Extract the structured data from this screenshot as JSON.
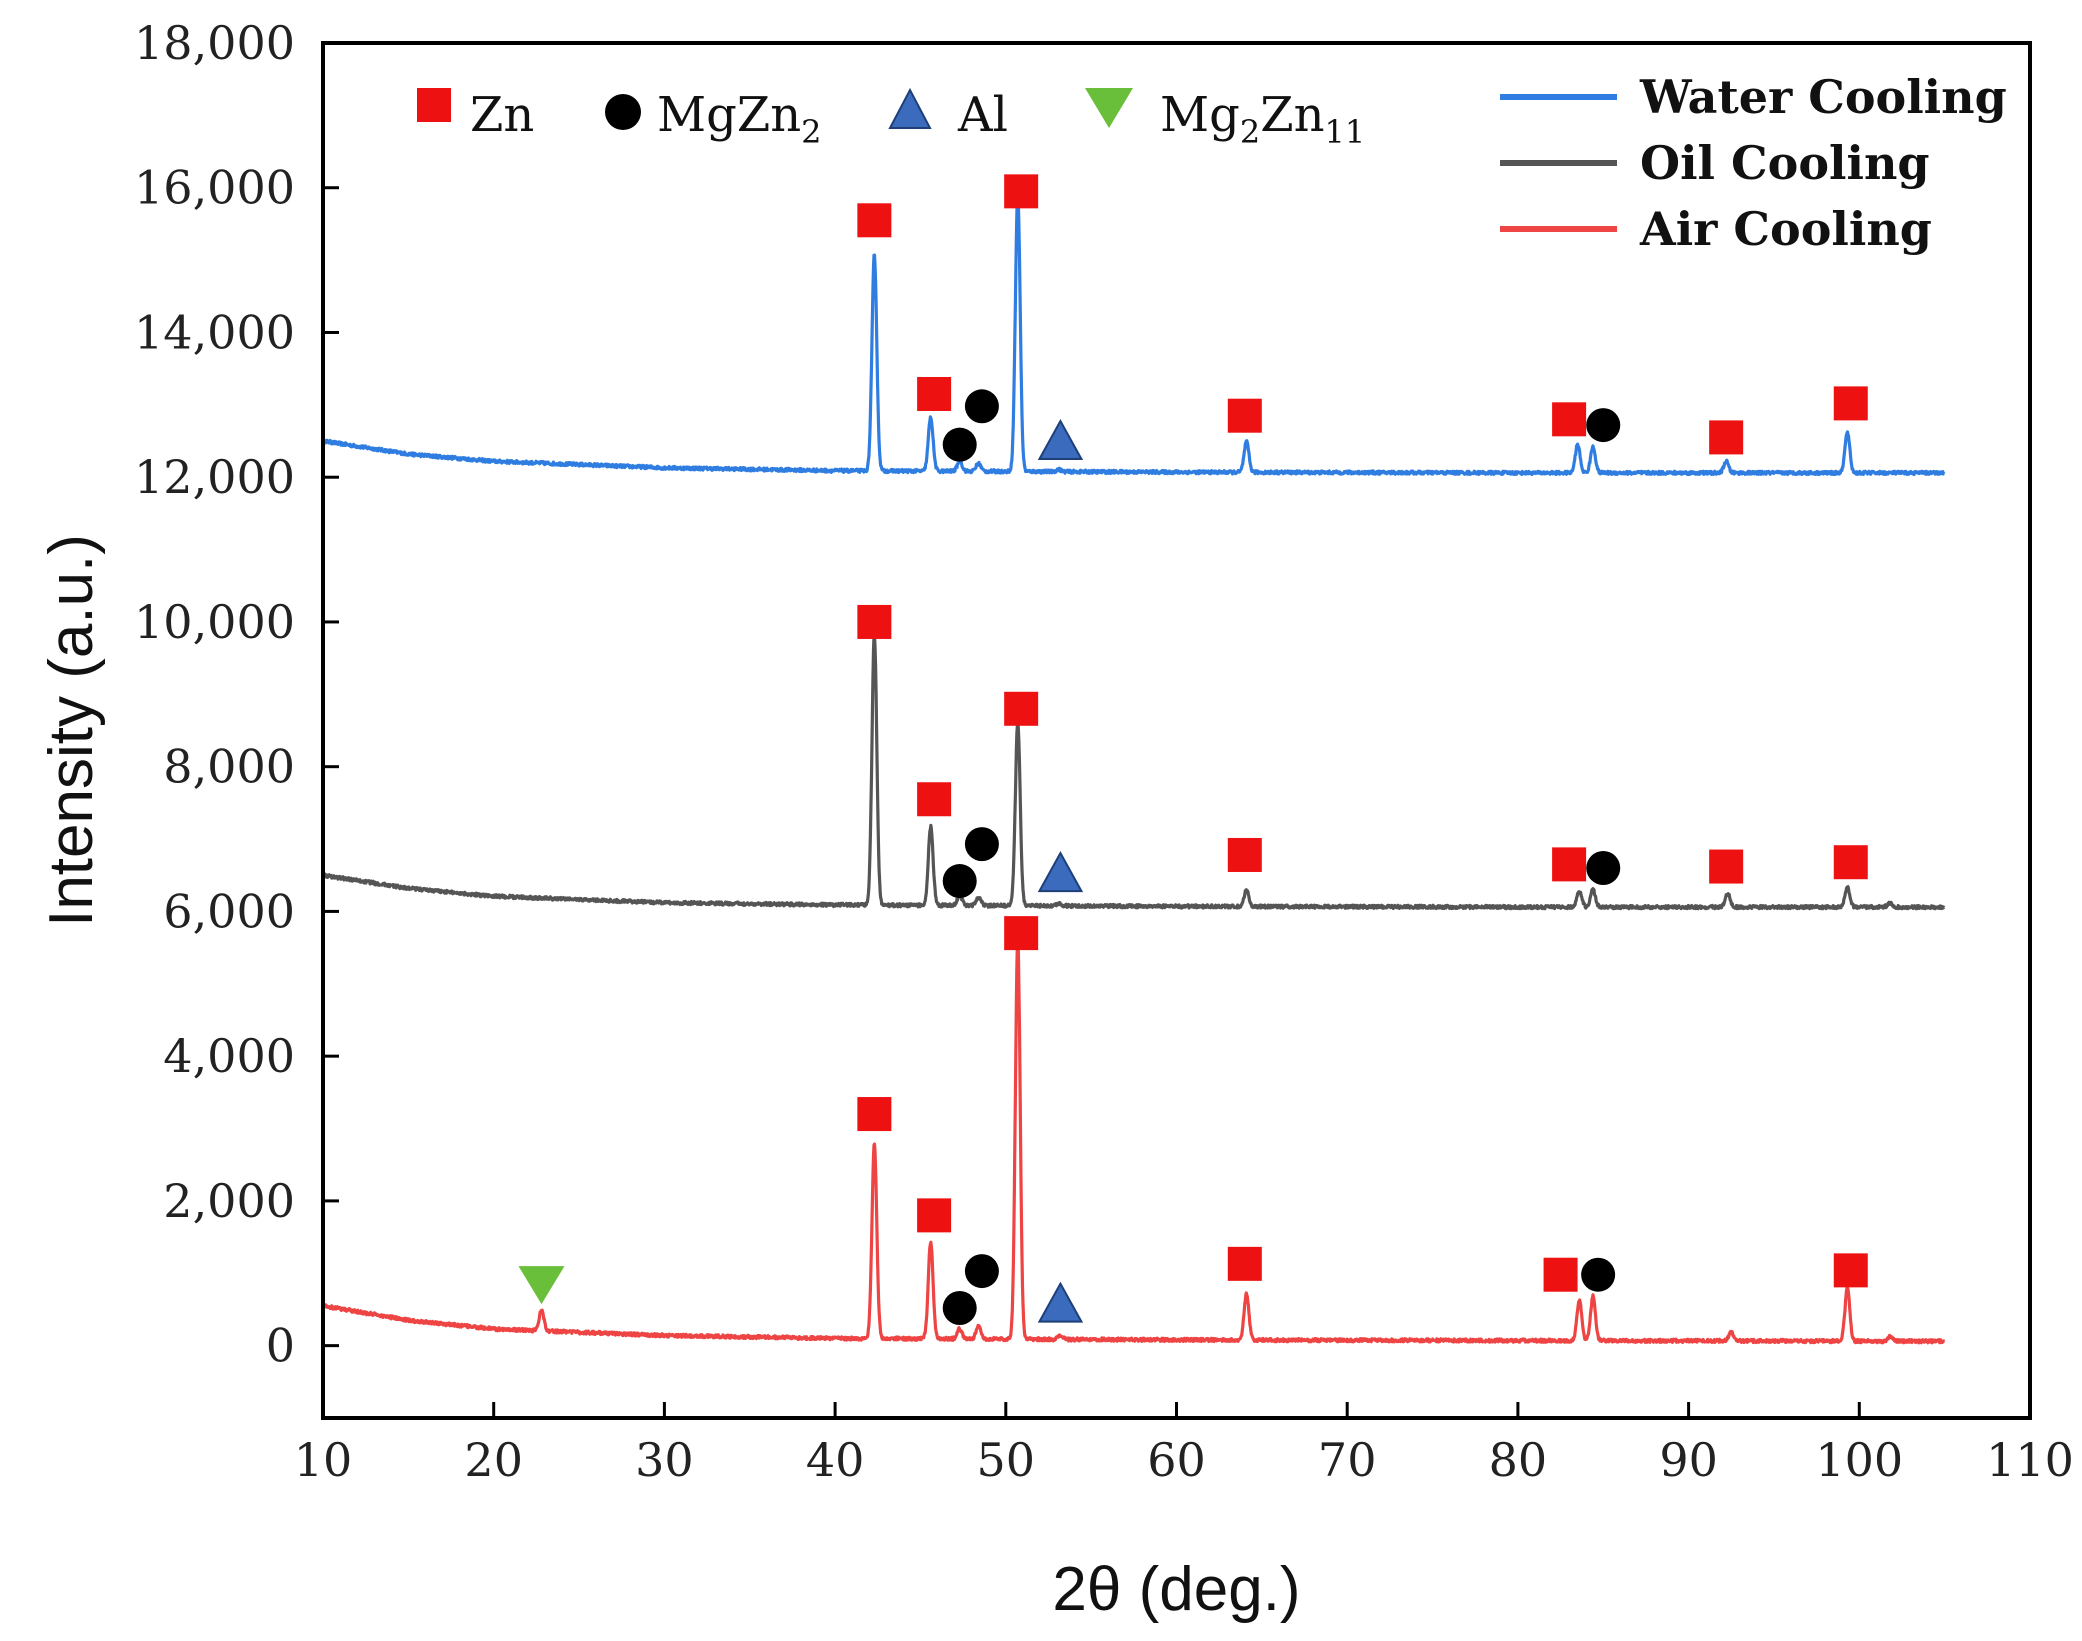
{
  "chart_data": {
    "type": "line",
    "xlabel": "2θ (deg.)",
    "ylabel": "Intensity (a.u.)",
    "xlim": [
      10,
      110
    ],
    "ylim": [
      -1000,
      18000
    ],
    "xticks": [
      10,
      20,
      30,
      40,
      50,
      60,
      70,
      80,
      90,
      100,
      110
    ],
    "xtick_labels": [
      "10",
      "20",
      "30",
      "40",
      "50",
      "60",
      "70",
      "80",
      "90",
      "100",
      "110"
    ],
    "yticks": [
      0,
      2000,
      4000,
      6000,
      8000,
      10000,
      12000,
      14000,
      16000,
      18000
    ],
    "ytick_labels": [
      "0",
      "2,000",
      "4,000",
      "6,000",
      "8,000",
      "10,000",
      "12,000",
      "14,000",
      "16,000",
      "18,000"
    ],
    "series": [
      {
        "name": "Water Cooling",
        "color": "#2f7de1",
        "x_range": [
          10,
          105
        ],
        "baseline": [
          [
            10,
            12500
          ],
          [
            15,
            12320
          ],
          [
            20,
            12220
          ],
          [
            30,
            12130
          ],
          [
            40,
            12090
          ],
          [
            60,
            12070
          ],
          [
            80,
            12060
          ],
          [
            105,
            12060
          ]
        ],
        "peaks": [
          [
            42.3,
            15050
          ],
          [
            45.6,
            12800
          ],
          [
            47.3,
            12200
          ],
          [
            48.4,
            12170
          ],
          [
            50.7,
            15900
          ],
          [
            53.1,
            12090
          ],
          [
            64.1,
            12480
          ],
          [
            83.5,
            12450
          ],
          [
            84.4,
            12420
          ],
          [
            92.2,
            12220
          ],
          [
            99.3,
            12620
          ]
        ]
      },
      {
        "name": "Oil Cooling",
        "color": "#555555",
        "x_range": [
          10,
          105
        ],
        "baseline": [
          [
            10,
            6500
          ],
          [
            15,
            6320
          ],
          [
            20,
            6210
          ],
          [
            30,
            6120
          ],
          [
            40,
            6090
          ],
          [
            60,
            6070
          ],
          [
            80,
            6060
          ],
          [
            105,
            6060
          ]
        ],
        "peaks": [
          [
            42.3,
            9800
          ],
          [
            45.6,
            7150
          ],
          [
            47.3,
            6200
          ],
          [
            48.4,
            6170
          ],
          [
            50.7,
            8600
          ],
          [
            53.1,
            6090
          ],
          [
            64.1,
            6280
          ],
          [
            83.6,
            6280
          ],
          [
            84.4,
            6300
          ],
          [
            92.3,
            6250
          ],
          [
            99.3,
            6330
          ],
          [
            101.8,
            6120
          ]
        ]
      },
      {
        "name": "Air Cooling",
        "color": "#ee4444",
        "x_range": [
          10,
          105
        ],
        "baseline": [
          [
            10,
            550
          ],
          [
            15,
            350
          ],
          [
            20,
            230
          ],
          [
            30,
            140
          ],
          [
            40,
            100
          ],
          [
            60,
            80
          ],
          [
            80,
            70
          ],
          [
            105,
            60
          ]
        ],
        "peaks": [
          [
            22.8,
            350
          ],
          [
            42.3,
            2750
          ],
          [
            45.6,
            1400
          ],
          [
            47.3,
            200
          ],
          [
            48.4,
            250
          ],
          [
            50.7,
            5600
          ],
          [
            53.2,
            120
          ],
          [
            64.1,
            700
          ],
          [
            83.6,
            620
          ],
          [
            84.4,
            680
          ],
          [
            92.5,
            180
          ],
          [
            99.3,
            790
          ],
          [
            101.8,
            120
          ]
        ]
      }
    ],
    "phase_legend": [
      {
        "marker": "square",
        "color": "#ee1111",
        "label": "Zn"
      },
      {
        "marker": "circle",
        "color": "#000000",
        "label": "MgZn",
        "sub": "2"
      },
      {
        "marker": "triangle-up",
        "color": "#3a6bbd",
        "label": "Al"
      },
      {
        "marker": "triangle-down",
        "color": "#6abf3a",
        "label": "Mg",
        "sub": "2",
        "label2": "Zn",
        "sub2": "11"
      }
    ],
    "annotations": [
      {
        "phase": "Zn",
        "marker": "square",
        "x": 42.3,
        "y": 15550
      },
      {
        "phase": "Zn",
        "marker": "square",
        "x": 45.8,
        "y": 13150
      },
      {
        "phase": "MgZn2",
        "marker": "circle",
        "x": 47.3,
        "y": 12450
      },
      {
        "phase": "MgZn2",
        "marker": "circle",
        "x": 48.6,
        "y": 12980
      },
      {
        "phase": "Zn",
        "marker": "square",
        "x": 50.9,
        "y": 15950
      },
      {
        "phase": "Al",
        "marker": "triangle-up",
        "x": 53.2,
        "y": 12500
      },
      {
        "phase": "Zn",
        "marker": "square",
        "x": 64.0,
        "y": 12850
      },
      {
        "phase": "Zn",
        "marker": "square",
        "x": 83.0,
        "y": 12800
      },
      {
        "phase": "MgZn2",
        "marker": "circle",
        "x": 85.0,
        "y": 12720
      },
      {
        "phase": "Zn",
        "marker": "square",
        "x": 92.2,
        "y": 12550
      },
      {
        "phase": "Zn",
        "marker": "square",
        "x": 99.5,
        "y": 13020
      },
      {
        "phase": "Zn",
        "marker": "square",
        "x": 42.3,
        "y": 10000
      },
      {
        "phase": "Zn",
        "marker": "square",
        "x": 45.8,
        "y": 7550
      },
      {
        "phase": "MgZn2",
        "marker": "circle",
        "x": 47.3,
        "y": 6420
      },
      {
        "phase": "MgZn2",
        "marker": "circle",
        "x": 48.6,
        "y": 6930
      },
      {
        "phase": "Zn",
        "marker": "square",
        "x": 50.9,
        "y": 8800
      },
      {
        "phase": "Al",
        "marker": "triangle-up",
        "x": 53.2,
        "y": 6530
      },
      {
        "phase": "Zn",
        "marker": "square",
        "x": 64.0,
        "y": 6780
      },
      {
        "phase": "Zn",
        "marker": "square",
        "x": 83.0,
        "y": 6650
      },
      {
        "phase": "MgZn2",
        "marker": "circle",
        "x": 85.0,
        "y": 6600
      },
      {
        "phase": "Zn",
        "marker": "square",
        "x": 92.2,
        "y": 6620
      },
      {
        "phase": "Zn",
        "marker": "square",
        "x": 99.5,
        "y": 6680
      },
      {
        "phase": "Mg2Zn11",
        "marker": "triangle-down",
        "x": 22.8,
        "y": 850
      },
      {
        "phase": "Zn",
        "marker": "square",
        "x": 42.3,
        "y": 3200
      },
      {
        "phase": "Zn",
        "marker": "square",
        "x": 45.8,
        "y": 1800
      },
      {
        "phase": "MgZn2",
        "marker": "circle",
        "x": 47.3,
        "y": 520
      },
      {
        "phase": "MgZn2",
        "marker": "circle",
        "x": 48.6,
        "y": 1030
      },
      {
        "phase": "Zn",
        "marker": "square",
        "x": 50.9,
        "y": 5700
      },
      {
        "phase": "Al",
        "marker": "triangle-up",
        "x": 53.2,
        "y": 580
      },
      {
        "phase": "Zn",
        "marker": "square",
        "x": 64.0,
        "y": 1130
      },
      {
        "phase": "Zn",
        "marker": "square",
        "x": 82.5,
        "y": 980
      },
      {
        "phase": "MgZn2",
        "marker": "circle",
        "x": 84.7,
        "y": 980
      },
      {
        "phase": "Zn",
        "marker": "square",
        "x": 99.5,
        "y": 1040
      }
    ]
  }
}
